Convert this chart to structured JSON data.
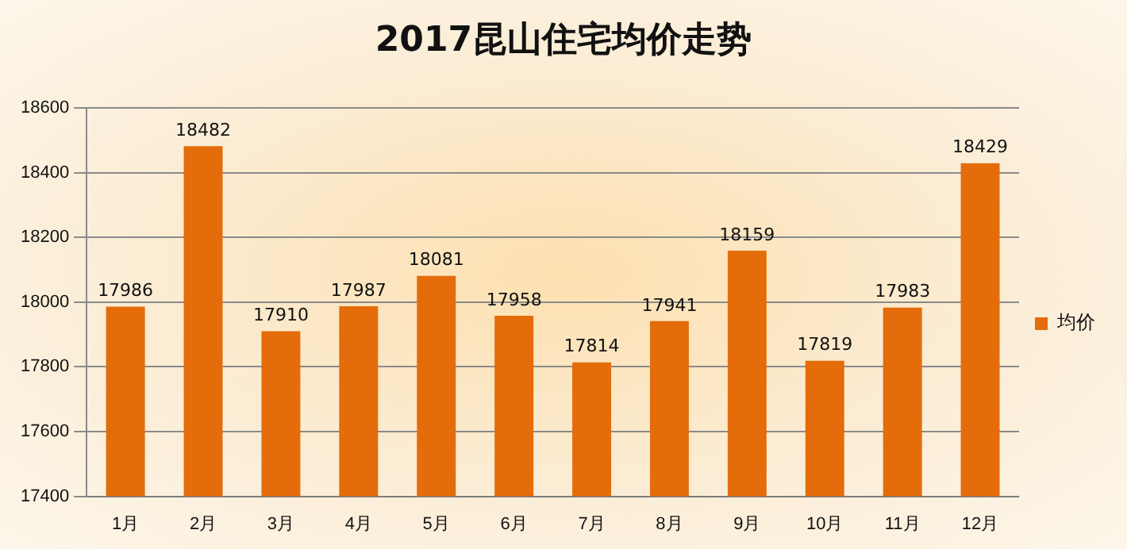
{
  "chart_data": {
    "type": "bar",
    "title": "2017昆山住宅均价走势",
    "categories": [
      "1月",
      "2月",
      "3月",
      "4月",
      "5月",
      "6月",
      "7月",
      "8月",
      "9月",
      "10月",
      "11月",
      "12月"
    ],
    "series": [
      {
        "name": "均价",
        "color": "#e46c0a",
        "values": [
          17986,
          18482,
          17910,
          17987,
          18081,
          17958,
          17814,
          17941,
          18159,
          17819,
          17983,
          18429
        ]
      }
    ],
    "ylim": [
      17400,
      18600
    ],
    "yticks": [
      17400,
      17600,
      17800,
      18000,
      18200,
      18400,
      18600
    ],
    "grid": "y",
    "legend": "right",
    "data_labels": true
  }
}
